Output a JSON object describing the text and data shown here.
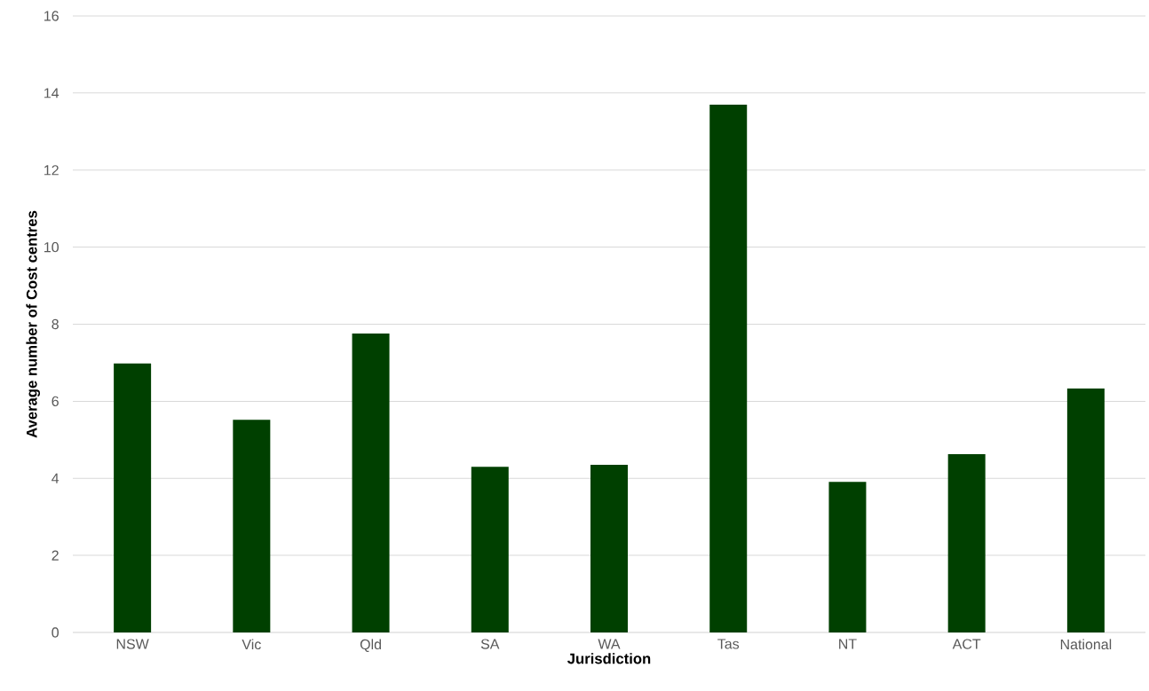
{
  "chart_data": {
    "type": "bar",
    "xlabel": "Jurisdiction",
    "ylabel": "Average number of Cost centres",
    "categories": [
      "NSW",
      "Vic",
      "Qld",
      "SA",
      "WA",
      "Tas",
      "NT",
      "ACT",
      "National"
    ],
    "values": [
      6.98,
      5.52,
      7.76,
      4.3,
      4.35,
      13.7,
      3.91,
      4.63,
      6.33
    ],
    "color": "#004000",
    "ylim": [
      0,
      16
    ],
    "yticks": [
      0,
      2,
      4,
      6,
      8,
      10,
      12,
      14,
      16
    ],
    "grid": "y"
  }
}
